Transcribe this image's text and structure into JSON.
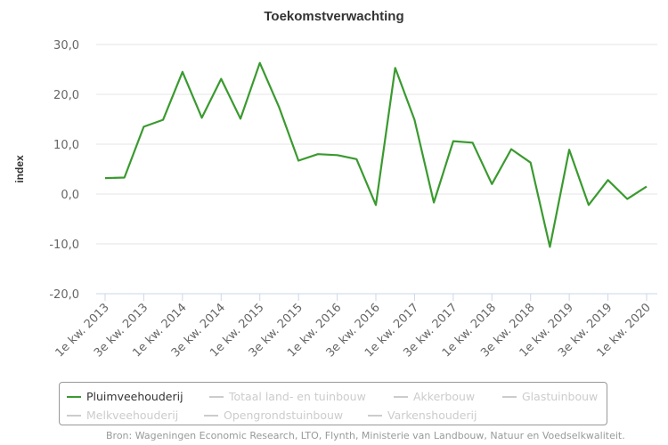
{
  "chart_data": {
    "type": "line",
    "title": "Toekomstverwachting",
    "ylabel": "index",
    "xlabel": "",
    "ylim": [
      -20,
      30
    ],
    "yticks": [
      "30,0",
      "20,0",
      "10,0",
      "0,0",
      "-10,0",
      "-20,0"
    ],
    "ytick_values": [
      30,
      20,
      10,
      0,
      -10,
      -20
    ],
    "x": [
      "1e kw. 2013",
      "2e kw. 2013",
      "3e kw. 2013",
      "4e kw. 2013",
      "1e kw. 2014",
      "2e kw. 2014",
      "3e kw. 2014",
      "4e kw. 2014",
      "1e kw. 2015",
      "2e kw. 2015",
      "3e kw. 2015",
      "4e kw. 2015",
      "1e kw. 2016",
      "2e kw. 2016",
      "3e kw. 2016",
      "4e kw. 2016",
      "1e kw. 2017",
      "2e kw. 2017",
      "3e kw. 2017",
      "4e kw. 2017",
      "1e kw. 2018",
      "2e kw. 2018",
      "3e kw. 2018",
      "4e kw. 2018",
      "1e kw. 2019",
      "2e kw. 2019",
      "3e kw. 2019",
      "4e kw. 2019",
      "1e kw. 2020"
    ],
    "xtick_labels": [
      "1e kw. 2013",
      "3e kw. 2013",
      "1e kw. 2014",
      "3e kw. 2014",
      "1e kw. 2015",
      "3e kw. 2015",
      "1e kw. 2016",
      "3e kw. 2016",
      "1e kw. 2017",
      "3e kw. 2017",
      "1e kw. 2018",
      "3e kw. 2018",
      "1e kw. 2019",
      "3e kw. 2019",
      "1e kw. 2020"
    ],
    "series": [
      {
        "name": "Pluimveehouderij",
        "color": "#3a9a2f",
        "values": [
          3.2,
          3.3,
          13.5,
          14.9,
          24.5,
          15.3,
          23.1,
          15.1,
          26.3,
          17.4,
          6.7,
          8.0,
          7.8,
          7.0,
          -2.2,
          25.3,
          14.9,
          -1.7,
          10.6,
          10.3,
          2.0,
          9.0,
          6.3,
          -10.6,
          8.9,
          -2.2,
          2.8,
          -1.0,
          1.5
        ]
      }
    ],
    "grid": true,
    "legend": {
      "placement": "bottom",
      "items": [
        {
          "label": "Pluimveehouderij",
          "active": true,
          "color": "#3a9a2f"
        },
        {
          "label": "Totaal land- en tuinbouw",
          "active": false,
          "color": "#cccccc"
        },
        {
          "label": "Akkerbouw",
          "active": false,
          "color": "#cccccc"
        },
        {
          "label": "Glastuinbouw",
          "active": false,
          "color": "#cccccc"
        },
        {
          "label": "Melkveehouderij",
          "active": false,
          "color": "#cccccc"
        },
        {
          "label": "Opengrondstuinbouw",
          "active": false,
          "color": "#cccccc"
        },
        {
          "label": "Varkenshouderij",
          "active": false,
          "color": "#cccccc"
        }
      ]
    },
    "source": "Bron: Wageningen Economic Research, LTO, Flynth, Ministerie van Landbouw, Natuur en Voedselkwaliteit."
  }
}
